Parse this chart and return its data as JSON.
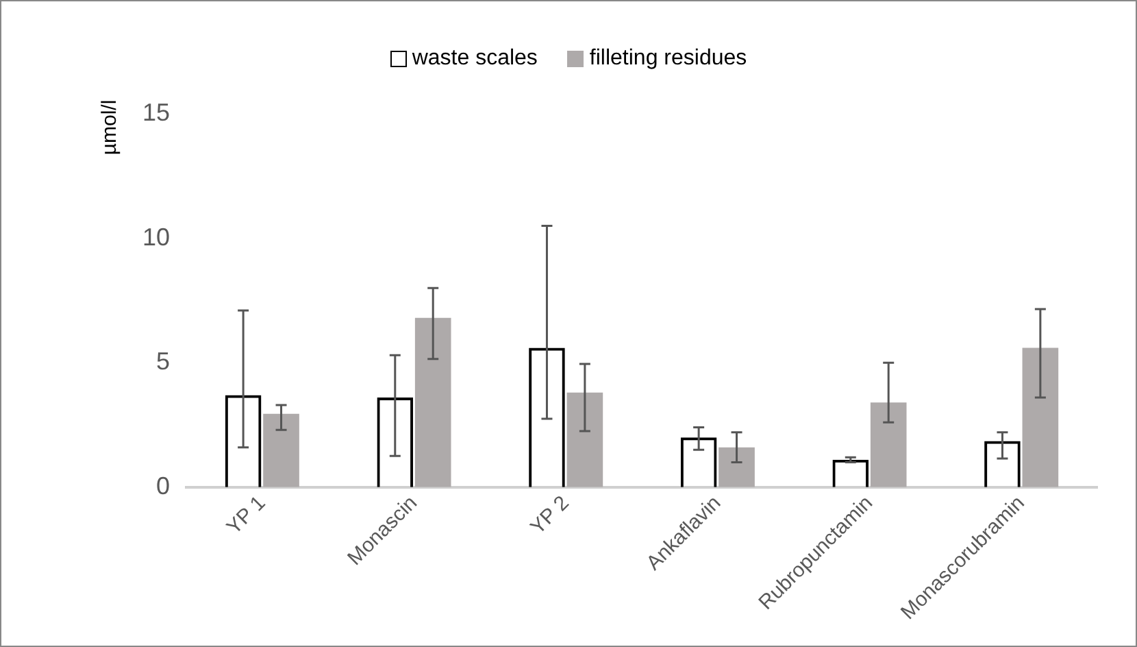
{
  "chart_data": {
    "type": "bar",
    "ylabel": "µmol/l",
    "categories": [
      "YP 1",
      "Monascin",
      "YP 2",
      "Ankaflavin",
      "Rubropunctamin",
      "Monascorubramin"
    ],
    "series": [
      {
        "name": "waste scales",
        "color": "#000000",
        "values": [
          3.7,
          3.6,
          5.6,
          2.0,
          1.1,
          1.85
        ],
        "errors": [
          [
            1.6,
            7.1
          ],
          [
            1.25,
            5.3
          ],
          [
            2.75,
            10.5
          ],
          [
            1.5,
            2.4
          ],
          [
            1.0,
            1.2
          ],
          [
            1.15,
            2.2
          ]
        ]
      },
      {
        "name": "filleting residues",
        "color": "#aeaaaa",
        "values": [
          2.95,
          6.8,
          3.8,
          1.6,
          3.4,
          5.6
        ],
        "errors": [
          [
            2.3,
            3.3
          ],
          [
            5.15,
            8.0
          ],
          [
            2.25,
            4.95
          ],
          [
            1.0,
            2.2
          ],
          [
            2.6,
            5.0
          ],
          [
            3.6,
            7.15
          ]
        ]
      }
    ],
    "ylim": [
      0,
      15
    ],
    "yticks": [
      0,
      5,
      10,
      15
    ],
    "grid": false,
    "legend": "top"
  }
}
